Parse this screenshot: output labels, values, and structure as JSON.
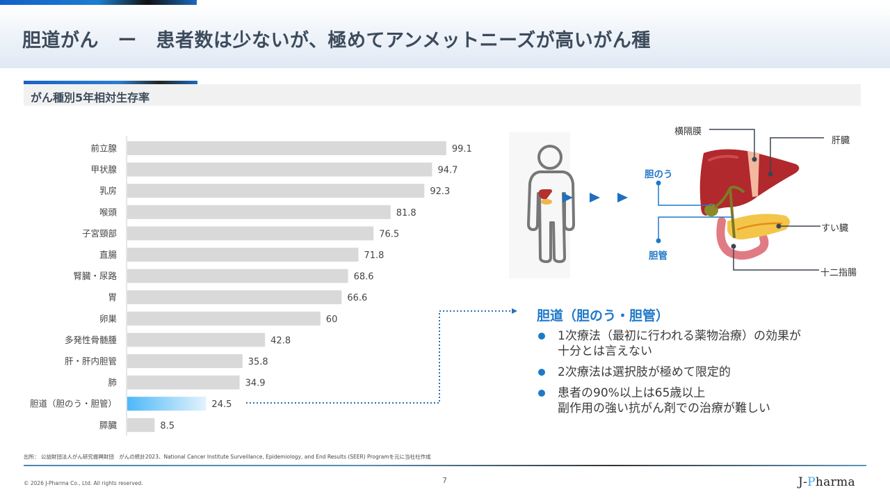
{
  "header": {
    "title": "胆道がん　ー　患者数は少ないが、極めてアンメットニーズが高いがん種"
  },
  "section": {
    "title": "がん種別5年相対生存率"
  },
  "chart_data": {
    "type": "bar",
    "orientation": "horizontal",
    "title": "がん種別5年相対生存率",
    "xlabel": "",
    "ylabel": "",
    "xlim": [
      0,
      100
    ],
    "grid": false,
    "legend": "none",
    "categories": [
      "前立腺",
      "甲状腺",
      "乳房",
      "喉頭",
      "子宮頸部",
      "直腸",
      "腎臓・尿路",
      "胃",
      "卵巣",
      "多発性骨髄腫",
      "肝・肝内胆管",
      "肺",
      "胆道（胆のう・胆管）",
      "膵臓"
    ],
    "values": [
      99.1,
      94.7,
      92.3,
      81.8,
      76.5,
      71.8,
      68.6,
      66.6,
      60,
      42.8,
      35.8,
      34.9,
      24.5,
      8.5
    ],
    "value_labels": [
      "99.1",
      "94.7",
      "92.3",
      "81.8",
      "76.5",
      "71.8",
      "68.6",
      "66.6",
      "60",
      "42.8",
      "35.8",
      "34.9",
      "24.5",
      "8.5"
    ],
    "highlight_index": 12,
    "colors": {
      "default": "#d9d9d9",
      "highlight_start": "#4db8f8",
      "highlight_end": "#e3f3fc"
    }
  },
  "anatomy": {
    "labels": {
      "diaphragm": "横隔膜",
      "liver": "肝臓",
      "gallbladder": "胆のう",
      "bile_duct": "胆管",
      "pancreas": "すい臓",
      "duodenum": "十二指腸"
    }
  },
  "info": {
    "title": "胆道（胆のう・胆管）",
    "bullets": [
      "1次療法（最初に行われる薬物治療）の効果が\n十分とは言えない",
      "2次療法は選択肢が極めて限定的",
      "患者の90%以上は65歳以上\n副作用の強い抗がん剤での治療が難しい"
    ]
  },
  "footer": {
    "source": "出所： 公益財団法人がん研究振興財団　がんの統計2023、National Cancer Institute Surveillance, Epidemiology, and End Results (SEER) Programを元に当社社作成",
    "copyright": "© 2026 J-Pharma Co., Ltd. All rights reserved.",
    "page_number": "7",
    "logo_prefix": "J-",
    "logo_accent": "P",
    "logo_suffix": "harma"
  },
  "colors": {
    "accent_blue": "#1f78c8",
    "title_text": "#3d4b5c"
  }
}
